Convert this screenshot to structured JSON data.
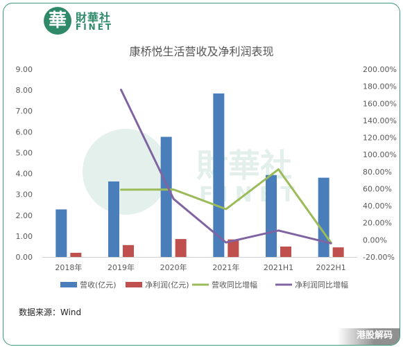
{
  "brand": {
    "badge_char": "華",
    "name_cn": "財華社",
    "name_en": "FINET",
    "accent_color": "#2f8a6a"
  },
  "footer": {
    "source": "数据来源：Wind",
    "corner_label": "港股解码"
  },
  "chart_data": {
    "type": "bar",
    "title": "康桥悦生活营收及净利润表现",
    "categories": [
      "2018年",
      "2019年",
      "2020年",
      "2021年",
      "2021H1",
      "2022H1"
    ],
    "left_axis": {
      "min": 0,
      "max": 9,
      "step": 1,
      "ticks": [
        "0.00",
        "1.00",
        "2.00",
        "3.00",
        "4.00",
        "5.00",
        "6.00",
        "7.00",
        "8.00",
        "9.00"
      ]
    },
    "right_axis": {
      "min": -20,
      "max": 200,
      "step": 20,
      "ticks": [
        "-20.00%",
        "0.00%",
        "20.00%",
        "40.00%",
        "60.00%",
        "80.00%",
        "100.00%",
        "120.00%",
        "140.00%",
        "160.00%",
        "180.00%",
        "200.00%"
      ]
    },
    "series": [
      {
        "name": "营收(亿元)",
        "kind": "bar",
        "axis": "left",
        "color": "#4a7ebb",
        "values": [
          2.28,
          3.62,
          5.76,
          7.84,
          3.93,
          3.8
        ]
      },
      {
        "name": "净利润(亿元)",
        "kind": "bar",
        "axis": "left",
        "color": "#c0504d",
        "values": [
          0.2,
          0.57,
          0.86,
          0.84,
          0.5,
          0.46
        ]
      },
      {
        "name": "营收同比增幅",
        "kind": "line",
        "axis": "right",
        "color": "#9bbb59",
        "values": [
          null,
          58.8,
          59.1,
          36.1,
          82.7,
          -3.3
        ]
      },
      {
        "name": "净利润同比增幅",
        "kind": "line",
        "axis": "right",
        "color": "#8064a2",
        "values": [
          null,
          176,
          48,
          -3,
          11,
          -4
        ]
      }
    ],
    "legend_position": "bottom",
    "grid": false
  }
}
